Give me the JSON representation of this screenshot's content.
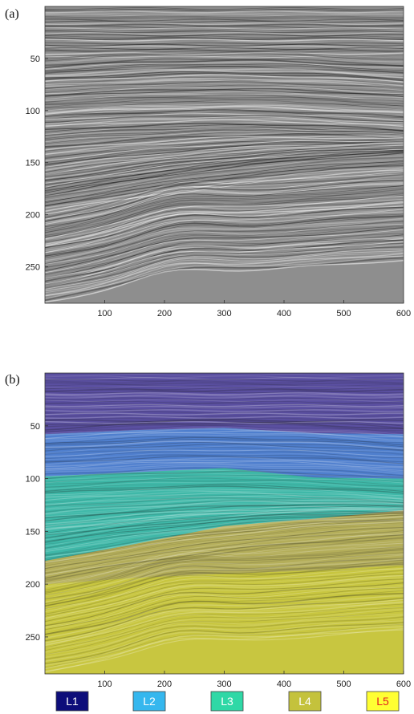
{
  "chart_data": [
    {
      "type": "heatmap",
      "panel_label": "(a)",
      "title": "",
      "xlabel": "",
      "ylabel": "",
      "xlim": [
        0,
        600
      ],
      "ylim": [
        0,
        285
      ],
      "y_inverted": true,
      "xticks": [
        100,
        200,
        300,
        400,
        500,
        600
      ],
      "yticks": [
        50,
        100,
        150,
        200,
        250
      ],
      "colormap": "grayscale seismic amplitude"
    },
    {
      "type": "heatmap",
      "panel_label": "(b)",
      "title": "",
      "xlabel": "",
      "ylabel": "",
      "xlim": [
        0,
        600
      ],
      "ylim": [
        0,
        285
      ],
      "y_inverted": true,
      "xticks": [
        100,
        200,
        300,
        400,
        500,
        600
      ],
      "yticks": [
        50,
        100,
        150,
        200,
        250
      ],
      "layers": [
        {
          "name": "L1",
          "color": "#0d0d7a",
          "overlay": "#5a4fa0",
          "text_color": "#ffffff"
        },
        {
          "name": "L2",
          "color": "#35b7ee",
          "overlay": "#4f7fce",
          "text_color": "#ffffff"
        },
        {
          "name": "L3",
          "color": "#2fd8a6",
          "overlay": "#3fb8a8",
          "text_color": "#ffffff"
        },
        {
          "name": "L4",
          "color": "#c4c23c",
          "overlay": "#b4ae5a",
          "text_color": "#ffffff"
        },
        {
          "name": "L5",
          "color": "#ffff33",
          "overlay": "#c8c640",
          "text_color": "#e02020"
        }
      ],
      "boundaries": [
        {
          "between": [
            "L1",
            "L2"
          ],
          "x": [
            0,
            150,
            300,
            450,
            600
          ],
          "y": [
            58,
            54,
            52,
            57,
            58
          ]
        },
        {
          "between": [
            "L2",
            "L3"
          ],
          "x": [
            0,
            150,
            300,
            450,
            600
          ],
          "y": [
            98,
            94,
            90,
            99,
            100
          ]
        },
        {
          "between": [
            "L3",
            "L4"
          ],
          "x": [
            0,
            150,
            300,
            450,
            600
          ],
          "y": [
            178,
            162,
            145,
            138,
            130
          ]
        },
        {
          "between": [
            "L4",
            "L5"
          ],
          "x": [
            0,
            150,
            300,
            450,
            600
          ],
          "y": [
            200,
            194,
            190,
            187,
            182
          ]
        }
      ]
    }
  ]
}
